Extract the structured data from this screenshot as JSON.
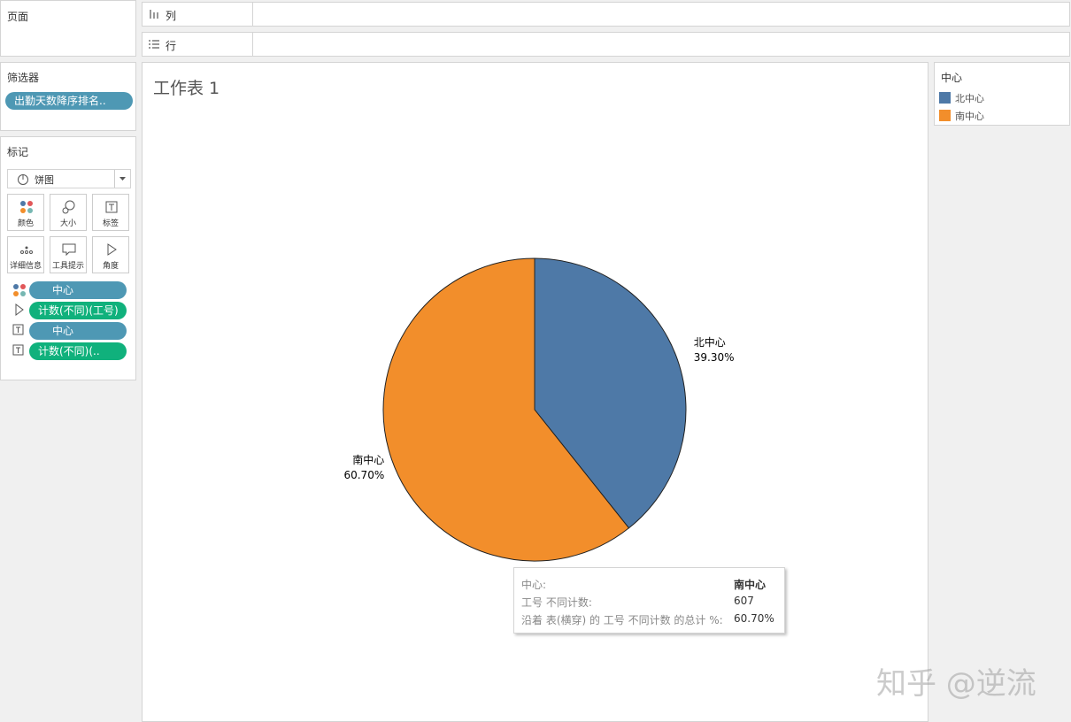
{
  "pages_panel": {
    "title": "页面"
  },
  "filters_panel": {
    "title": "筛选器",
    "pills": [
      "出勤天数降序排名.."
    ]
  },
  "marks_panel": {
    "title": "标记",
    "mark_type": "饼图",
    "buttons": [
      "颜色",
      "大小",
      "标签",
      "详细信息",
      "工具提示",
      "角度"
    ],
    "pills": [
      "中心",
      "计数(不同)(工号)",
      "中心",
      "计数(不同)(.."
    ]
  },
  "shelves": {
    "columns": "列",
    "rows": "行"
  },
  "chart_data": {
    "type": "pie",
    "title": "工作表 1",
    "categories": [
      "北中心",
      "南中心"
    ],
    "values": [
      39.3,
      60.7
    ],
    "value_labels": [
      "39.30%",
      "60.70%"
    ],
    "colors": [
      "#4e79a7",
      "#f28e2b"
    ],
    "legend_title": "中心"
  },
  "tooltip": {
    "rows": [
      {
        "label": "中心:",
        "value": "南中心"
      },
      {
        "label": "工号 不同计数:",
        "value": 607
      },
      {
        "label": "沿着 表(横穿) 的 工号 不同计数 的总计 %:",
        "value": "60.70%"
      }
    ]
  },
  "watermark": "知乎 @逆流"
}
